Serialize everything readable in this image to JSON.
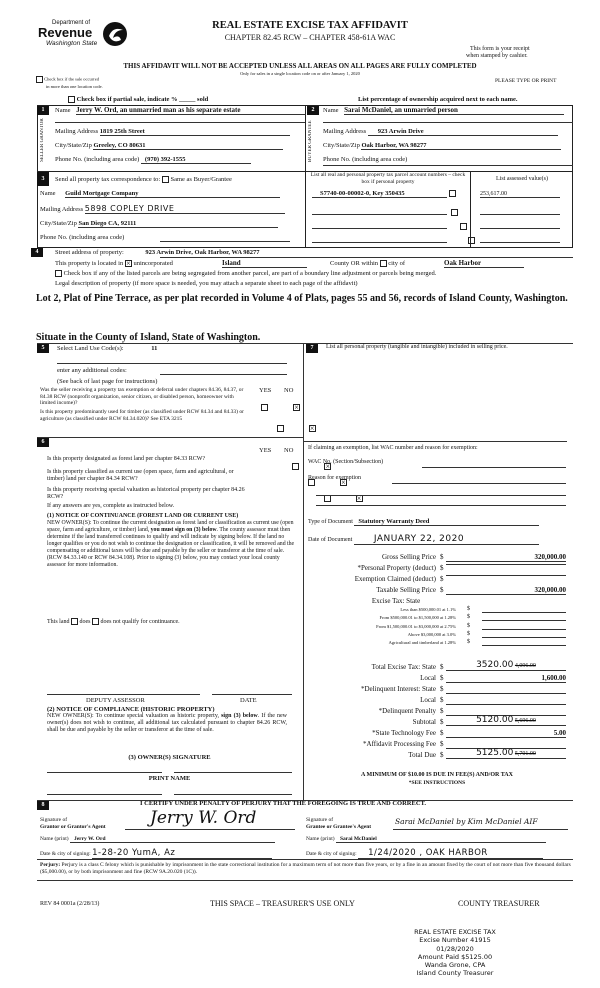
{
  "header": {
    "logo_dept": "Department of",
    "logo_revenue": "Revenue",
    "logo_state": "Washington State",
    "title": "REAL ESTATE EXCISE TAX AFFIDAVIT",
    "subtitle": "CHAPTER 82.45 RCW – CHAPTER 458-61A WAC",
    "receipt_1": "This form is your receipt",
    "receipt_2": "when stamped by cashier.",
    "warning": "THIS AFFIDAVIT WILL NOT BE ACCEPTED UNLESS ALL AREAS ON ALL PAGES ARE FULLY COMPLETED",
    "only_for": "Only for sales in a single location code on or after January 1, 2020",
    "multi_loc_1": "Check box if the sale occurred",
    "multi_loc_2": "in more than one location code.",
    "type_print": "PLEASE TYPE OR PRINT",
    "partial_sale": "Check box if partial sale, indicate % _____ sold",
    "list_pct": "List percentage of ownership acquired next to each name."
  },
  "seller": {
    "num": "1",
    "side_label": "SELLER GRANTOR",
    "name_label": "Name",
    "name": "Jerry W. Ord, an unmarried man as his separate estate",
    "mail_label": "Mailing Address",
    "mail": "1819 25th Street",
    "city_label": "City/State/Zip",
    "city": "Greeley, CO 80631",
    "phone_label": "Phone No. (including area code)",
    "phone": "(970) 392-1555"
  },
  "buyer": {
    "num": "2",
    "side_label": "BUYER GRANTEE",
    "name_label": "Name",
    "name": "Sarai McDaniel, an unmarried person",
    "mail_label": "Mailing Address",
    "mail": "923 Arwin Drive",
    "city_label": "City/State/Zip",
    "city": "Oak Harbor, WA 98277",
    "phone_label": "Phone No. (including area code)"
  },
  "section3": {
    "num": "3",
    "label": "Send all property tax correspondence to:",
    "same_as": "Same as Buyer/Grantee",
    "name_label": "Name",
    "name": "Guild Mortgage Company",
    "mail_label": "Mailing Address",
    "mail": "5898 COPLEY DRIVE",
    "city_label": "City/State/Zip",
    "city": "San Diego CA, 92111",
    "phone_label": "Phone No. (including area code)",
    "parcel_header": "List all real and personal property tax parcel account numbers – check box if personal property",
    "assessed_header": "List assessed value(s)",
    "parcel": "S7740-00-00002-0, Key 350435",
    "assessed": "253,617.00"
  },
  "section4": {
    "num": "4",
    "street_label": "Street address of property:",
    "street": "923 Arwin Drive, Oak Harbor, WA  98277",
    "located_in": "This property is located in",
    "unincorporated": "unincorporated",
    "county": "Island",
    "county_or": "County OR  within",
    "city_of": "city of",
    "city": "Oak Harbor",
    "segregated": "Check box if any of the listed parcels are being segregated from another parcel, are part of a boundary line adjustment or parcels being merged.",
    "legal_label": "Legal description of property (if more space is needed, you may attach a separate sheet to each page of the affidavit)",
    "legal": "Lot 2, Plat of Pine Terrace, as per plat recorded in Volume 4 of Plats, pages 55 and 56, records of Island County, Washington.",
    "situate": "Situate in the County of Island, State of Washington."
  },
  "section5": {
    "num": "5",
    "land_use_label": "Select Land Use Code(s):",
    "land_use": "11",
    "additional": "enter any additional codes:",
    "see_back": "(See back of last page for instructions)",
    "yes": "YES",
    "no": "NO",
    "q1": "Was the seller receiving a property tax exemption or deferral under chapters 84.36, 84.37, or 84.38 RCW (nonprofit organization, senior citizen, or disabled person, homeowner with limited income)?",
    "q2": "Is this property predominantly used for timber (as classified under RCW 84.34 and 84.33) or agriculture (as classified under RCW 84.34.020)? See ETA 3215"
  },
  "section6": {
    "num": "6",
    "yes": "YES",
    "no": "NO",
    "q1": "Is this property designated as forest land per chapter 84.33 RCW?",
    "q2": "Is this property classified as current use (open space, farm and agricultural, or timber) land per chapter 84.34 RCW?",
    "q3": "Is this property receiving special valuation as historical property per chapter 84.26 RCW?",
    "if_yes": "If any answers are yes, complete as instructed below.",
    "notice1_title": "(1) NOTICE OF CONTINUANCE (FOREST LAND OR CURRENT USE)",
    "notice1_a": "NEW OWNER(S): To continue the current designation as forest land or classification as current use (open space, farm and agriculture, or timber) land, ",
    "notice1_bold": "you must sign on (3) below",
    "notice1_b": ". The county assessor must then determine if the land transferred continues to qualify and will indicate by signing below. If the land no longer qualifies or you do not wish to continue the designation or classification, it will be removed and the compensating or additional taxes will be due and payable by the seller or transferor at the time of sale. (RCW 84.33.140 or RCW 84.34.108). Prior to signing (3) below, you may contact your local county assessor for more information.",
    "this_land": "This land",
    "does": "does",
    "does_not": "does not qualify for continuance.",
    "deputy": "DEPUTY ASSESSOR",
    "date": "DATE",
    "notice2_title": "(2) NOTICE OF COMPLIANCE (HISTORIC PROPERTY)",
    "notice2_a": "NEW OWNER(S): To continue special valuation as historic property, ",
    "notice2_bold": "sign (3) below",
    "notice2_b": ". If the new owner(s) does not wish to continue, all additional tax calculated pursuant to chapter 84.26 RCW, shall be due and payable by the seller or transferor at the time of sale.",
    "owner_sig": "(3)  OWNER(S) SIGNATURE",
    "print_name": "PRINT NAME"
  },
  "section7": {
    "num": "7",
    "label": "List all personal property (tangible and intangible) included in selling price.",
    "exemption": "If claiming an exemption, list WAC number and reason for exemption:",
    "wac_label": "WAC No. (Section/Subsection)",
    "reason_label": "Reason for exemption",
    "doc_type_label": "Type of Document",
    "doc_type": "Statutory Warranty Deed",
    "doc_date_label": "Date of Document",
    "doc_date": "JANUARY 22, 2020"
  },
  "tax": {
    "rows": [
      {
        "label": "Gross Selling Price",
        "value": "320,000.00"
      },
      {
        "label": "*Personal Property (deduct)",
        "value": ""
      },
      {
        "label": "Exemption Claimed (deduct)",
        "value": ""
      },
      {
        "label": "Taxable Selling Price",
        "value": "320,000.00"
      }
    ],
    "excise_state": "Excise Tax:  State",
    "brackets": [
      "Less than $500,000.01 at 1.1%",
      "From $500,000.01 to $1,500,000 at 1.28%",
      "From $1,500,000.01 to $3,000,000 at 2.75%",
      "Above $3,000,000 at 3.0%",
      "Agricultural and timberland at 1.28%"
    ],
    "totals": [
      {
        "label": "Total Excise Tax: State",
        "value": "3520.00",
        "struck": "4,096.00"
      },
      {
        "label": "Local",
        "value": "1,600.00",
        "struck": ""
      },
      {
        "label": "*Delinquent Interest: State",
        "value": "",
        "struck": ""
      },
      {
        "label": "Local",
        "value": "",
        "struck": ""
      },
      {
        "label": "*Delinquent Penalty",
        "value": "",
        "struck": ""
      },
      {
        "label": "Subtotal",
        "value": "5120.00",
        "struck": "5,696.00"
      },
      {
        "label": "*State Technology Fee",
        "value": "5.00",
        "struck": ""
      },
      {
        "label": "*Affidavit Processing Fee",
        "value": "",
        "struck": ""
      },
      {
        "label": "Total Due",
        "value": "5125.00",
        "struck": "5,701.00"
      }
    ],
    "currency": "$",
    "minimum": "A MINIMUM OF $10.00 IS DUE IN FEE(S) AND/OR TAX",
    "see_instr": "*SEE INSTRUCTIONS"
  },
  "section8": {
    "num": "8",
    "certify": "I CERTIFY UNDER PENALTY OF PERJURY THAT THE FOREGOING IS TRUE AND CORRECT.",
    "grantor_sig_1": "Signature of",
    "grantor_sig_2": "Grantor or Grantor's Agent",
    "grantor_signature": "Jerry W. Ord",
    "grantor_name_label": "Name (print)",
    "grantor_name": "Jerry W. Ord",
    "grantor_date_label": "Date & city of signing:",
    "grantor_date": "1-28-20  YumA, Az",
    "grantee_sig_1": "Signature of",
    "grantee_sig_2": "Grantee or Grantee's Agent",
    "grantee_signature": "Sarai McDaniel by Kim McDaniel AIF",
    "grantee_name_label": "Name (print)",
    "grantee_name": "Sarai  McDaniel",
    "grantee_date_label": "Date & city of signing:",
    "grantee_date": "1/24/2020 , OAK HARBOR",
    "perjury_label": "Perjury:",
    "perjury": "Perjury is a class C felony which is punishable by imprisonment in the state correctional institution for a maximum term of not more than five years, or by a fine in an amount fixed by the court of not more than five thousand dollars ($5,000.00), or by both imprisonment and fine (RCW 9A.20.020 (1C))."
  },
  "footer": {
    "rev": "REV 84 0001a (2/28/13)",
    "treasurer_use": "THIS SPACE – TREASURER'S USE ONLY",
    "county_treasurer": "COUNTY TREASURER"
  },
  "stamp": {
    "line1": "REAL ESTATE EXCISE TAX",
    "line2": "Excise Number 41915",
    "line3": "01/28/2020",
    "line4": "Amount Paid $5125.00",
    "line5": "Wanda Grone, CPA",
    "line6": "Island County Treasurer"
  }
}
